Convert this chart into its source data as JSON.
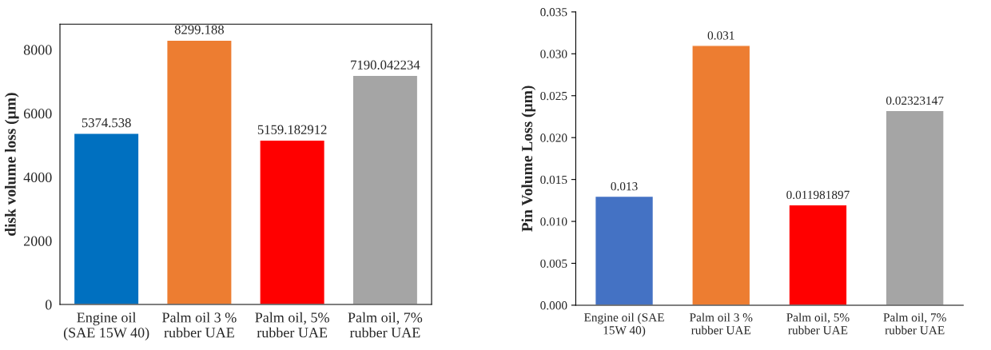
{
  "chart_data": [
    {
      "type": "bar",
      "ylabel": "disk volume loss (µm)",
      "categories": [
        "Engine oil (SAE 15W 40)",
        "Palm oil 3 % rubber UAE",
        "Palm oil, 5% rubber UAE",
        "Palm oil, 7% rubber UAE"
      ],
      "values": [
        5374.538,
        8299.188,
        5159.182912,
        7190.042234
      ],
      "colors": [
        "#0070c0",
        "#ed7d31",
        "#ff0000",
        "#a5a5a5"
      ],
      "ylim": [
        0,
        8800
      ],
      "yticks": [
        0,
        2000,
        4000,
        6000,
        8000
      ],
      "grid": false,
      "legend": false,
      "data_labels": true
    },
    {
      "type": "bar",
      "ylabel": "Pin Volume Loss (µm)",
      "categories": [
        "Engine oil (SAE 15W 40)",
        "Palm oil 3 % rubber UAE",
        "Palm oil, 5% rubber UAE",
        "Palm oil, 7% rubber UAE"
      ],
      "values": [
        0.013,
        0.031,
        0.011981897,
        0.02323147
      ],
      "colors": [
        "#4472c4",
        "#ed7d31",
        "#ff0000",
        "#a5a5a5"
      ],
      "ylim": [
        0,
        0.035
      ],
      "yticks": [
        {
          "value": 0,
          "label": "0.000"
        },
        {
          "value": 0.005,
          "label": "0.005"
        },
        {
          "value": 0.01,
          "label": "0.010"
        },
        {
          "value": 0.015,
          "label": "0.015"
        },
        {
          "value": 0.02,
          "label": "0.020"
        },
        {
          "value": 0.025,
          "label": "0.025"
        },
        {
          "value": 0.03,
          "label": "0.030"
        },
        {
          "value": 0.035,
          "label": "0.035"
        }
      ],
      "grid": false,
      "legend": false,
      "data_labels": true
    }
  ]
}
